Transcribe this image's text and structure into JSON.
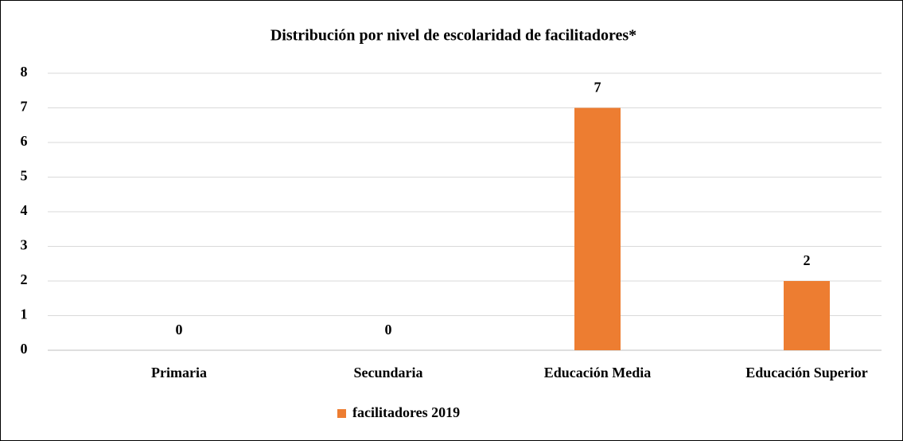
{
  "chart_data": {
    "type": "bar",
    "title": "Distribución por nivel de escolaridad de facilitadores*",
    "categories": [
      "Primaria",
      "Secundaria",
      "Educación Media",
      "Educación Superior"
    ],
    "series": [
      {
        "name": "facilitadores 2019",
        "color": "#ed7d31",
        "values": [
          0,
          0,
          7,
          2
        ]
      }
    ],
    "ylim": [
      0,
      8
    ],
    "yticks": [
      0,
      1,
      2,
      3,
      4,
      5,
      6,
      7,
      8
    ],
    "grid": true,
    "legend": "bottom"
  }
}
